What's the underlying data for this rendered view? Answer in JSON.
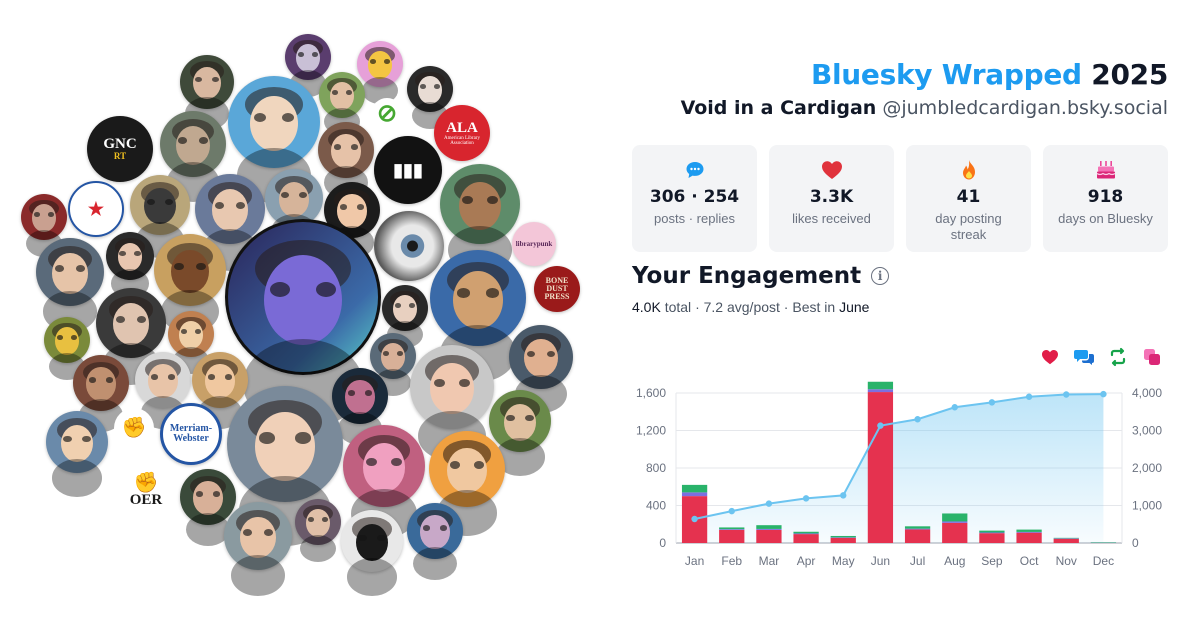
{
  "header": {
    "title_accent": "Bluesky Wrapped",
    "title_year": "2025",
    "display_name": "Void in a Cardigan",
    "handle": "@jumbledcardigan.bsky.social"
  },
  "stats": [
    {
      "icon": "speech-bubble-icon",
      "value": "306 · 254",
      "label": "posts · replies"
    },
    {
      "icon": "heart-icon",
      "value": "3.3K",
      "label": "likes received"
    },
    {
      "icon": "flame-icon",
      "value": "41",
      "label": "day posting streak"
    },
    {
      "icon": "cake-icon",
      "value": "918",
      "label": "days on Bluesky"
    }
  ],
  "engagement": {
    "title": "Your Engagement",
    "summary_total": "4.0K",
    "summary_total_label": "total",
    "summary_avg": "7.2 avg/post",
    "summary_best_label": "Best in",
    "summary_best": "June"
  },
  "legend": [
    {
      "name": "likes",
      "icon": "heart-icon",
      "color": "#e11d48"
    },
    {
      "name": "replies",
      "icon": "reply-bubbles-icon",
      "color": "#1d9bf0"
    },
    {
      "name": "reposts",
      "icon": "repost-icon",
      "color": "#16a34a"
    },
    {
      "name": "quotes",
      "icon": "quote-icon",
      "color": "#db2777"
    }
  ],
  "avatar_logos": {
    "gnc": "GNC",
    "gnc_sub": "RT",
    "ala": "ALA",
    "ala_sub": "American Library Association",
    "merriam": "Merriam-Webster",
    "oer": "OER",
    "librarypunk": "librarypunk",
    "bone_dust": "BONE DUST PRESS"
  },
  "chart_data": {
    "type": "bar",
    "categories": [
      "Jan",
      "Feb",
      "Mar",
      "Apr",
      "May",
      "Jun",
      "Jul",
      "Aug",
      "Sep",
      "Oct",
      "Nov",
      "Dec"
    ],
    "series": [
      {
        "name": "likes",
        "color": "#e5324f",
        "values": [
          500,
          140,
          140,
          95,
          55,
          1610,
          145,
          215,
          105,
          110,
          45,
          5
        ]
      },
      {
        "name": "replies",
        "color": "#7c6fe0",
        "values": [
          40,
          8,
          10,
          7,
          5,
          30,
          8,
          15,
          7,
          8,
          5,
          1
        ]
      },
      {
        "name": "reposts",
        "color": "#29b36a",
        "values": [
          80,
          18,
          40,
          18,
          15,
          80,
          25,
          85,
          20,
          25,
          5,
          1
        ]
      },
      {
        "name": "cumulative",
        "color": "#6cc4f0",
        "values": [
          640,
          850,
          1050,
          1190,
          1270,
          3130,
          3300,
          3620,
          3750,
          3900,
          3960,
          3970
        ]
      }
    ],
    "y_left_ticks": [
      "0",
      "400",
      "800",
      "1,200",
      "1,600"
    ],
    "y_left_lim": [
      0,
      1600
    ],
    "y_right_ticks": [
      "0",
      "1,000",
      "2,000",
      "3,000",
      "4,000"
    ],
    "y_right_lim": [
      0,
      4000
    ],
    "grid": true
  }
}
